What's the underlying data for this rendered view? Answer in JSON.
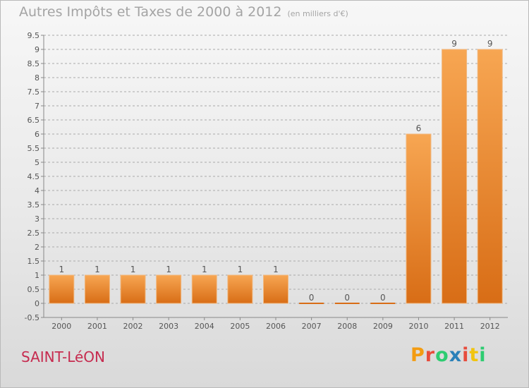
{
  "title": "Autres Impôts et Taxes de 2000 à 2012",
  "unit": "(en milliers d'€)",
  "commune": "SAINT-LéON",
  "logo": {
    "text": "Proxiti",
    "letters": [
      "P",
      "r",
      "o",
      "x",
      "i",
      "t",
      "i"
    ],
    "colors": [
      "#f39c12",
      "#e74c3c",
      "#2ecc71",
      "#2980b9",
      "#e74c3c",
      "#f1c40f",
      "#2ecc71"
    ]
  },
  "colors": {
    "bar_light": "#f7a652",
    "bar_dark": "#d86d16",
    "grid": "#a9a9a9",
    "label": "#555555",
    "commune": "#c62b4f"
  },
  "chart_data": {
    "type": "bar",
    "title": "Autres Impôts et Taxes de 2000 à 2012",
    "categories": [
      "2000",
      "2001",
      "2002",
      "2003",
      "2004",
      "2005",
      "2006",
      "2007",
      "2008",
      "2009",
      "2010",
      "2011",
      "2012"
    ],
    "values": [
      1,
      1,
      1,
      1,
      1,
      1,
      1,
      0,
      0,
      0,
      6,
      9,
      9
    ],
    "data_labels": [
      "1",
      "1",
      "1",
      "1",
      "1",
      "1",
      "1",
      "0",
      "0",
      "0",
      "6",
      "9",
      "9"
    ],
    "yticks": [
      -0.5,
      0,
      0.5,
      1,
      1.5,
      2,
      2.5,
      3,
      3.5,
      4,
      4.5,
      5,
      5.5,
      6,
      6.5,
      7,
      7.5,
      8,
      8.5,
      9,
      9.5
    ],
    "ylim": [
      -0.5,
      9.5
    ],
    "grid": true
  }
}
